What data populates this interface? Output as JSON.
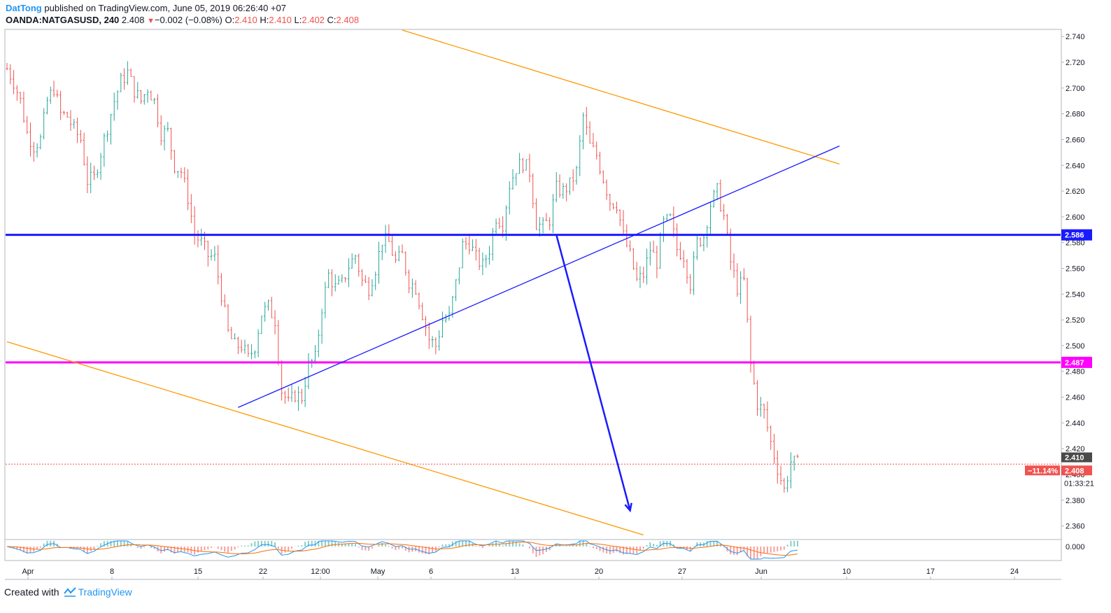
{
  "header": {
    "author": "DatTong",
    "published_text": "published on TradingView.com, June 05, 2019 06:26:40 +07",
    "symbol": "OANDA:NATGASUSD, 240",
    "last": "2.408",
    "change_arrow": "▼",
    "change": "−0.002 (−0.08%)",
    "open_label": "O:",
    "open": "2.410",
    "high_label": "H:",
    "high": "2.410",
    "low_label": "L:",
    "low": "2.402",
    "close_label": "C:",
    "close": "2.408"
  },
  "footer": {
    "created_with": "Created with",
    "brand": "TradingView"
  },
  "colors": {
    "up": "#26a69a",
    "down": "#ef5350",
    "resistance_blue": "#1a1aff",
    "support_magenta": "#ff00ff",
    "channel_orange": "#ff9800",
    "trend_blue": "#2962ff"
  },
  "chart_data": {
    "type": "candlestick",
    "symbol": "OANDA:NATGASUSD",
    "timeframe": "240",
    "ylim": [
      2.35,
      2.745
    ],
    "y_ticks": [
      "2.740",
      "2.720",
      "2.700",
      "2.680",
      "2.660",
      "2.640",
      "2.620",
      "2.600",
      "2.580",
      "2.560",
      "2.540",
      "2.520",
      "2.500",
      "2.480",
      "2.460",
      "2.440",
      "2.420",
      "2.400",
      "2.380",
      "2.360"
    ],
    "x_ticks": [
      "Apr",
      "8",
      "15",
      "22",
      "12:00",
      "May",
      "6",
      "13",
      "20",
      "27",
      "Jun",
      "10",
      "17",
      "24"
    ],
    "price_close_path": [
      [
        0,
        2.715
      ],
      [
        4,
        2.705
      ],
      [
        8,
        2.69
      ],
      [
        12,
        2.665
      ],
      [
        16,
        2.655
      ],
      [
        20,
        2.66
      ],
      [
        24,
        2.69
      ],
      [
        28,
        2.7
      ],
      [
        32,
        2.68
      ],
      [
        36,
        2.678
      ],
      [
        40,
        2.668
      ],
      [
        44,
        2.66
      ],
      [
        48,
        2.628
      ],
      [
        52,
        2.63
      ],
      [
        56,
        2.65
      ],
      [
        60,
        2.67
      ],
      [
        64,
        2.69
      ],
      [
        68,
        2.705
      ],
      [
        72,
        2.712
      ],
      [
        76,
        2.698
      ],
      [
        80,
        2.69
      ],
      [
        84,
        2.7
      ],
      [
        88,
        2.69
      ],
      [
        92,
        2.665
      ],
      [
        96,
        2.666
      ],
      [
        100,
        2.64
      ],
      [
        104,
        2.635
      ],
      [
        108,
        2.615
      ],
      [
        112,
        2.586
      ],
      [
        116,
        2.58
      ],
      [
        120,
        2.57
      ],
      [
        124,
        2.568
      ],
      [
        128,
        2.54
      ],
      [
        132,
        2.51
      ],
      [
        136,
        2.5
      ],
      [
        140,
        2.5
      ],
      [
        144,
        2.49
      ],
      [
        148,
        2.5
      ],
      [
        152,
        2.525
      ],
      [
        156,
        2.53
      ],
      [
        160,
        2.52
      ],
      [
        164,
        2.465
      ],
      [
        168,
        2.455
      ],
      [
        172,
        2.462
      ],
      [
        176,
        2.46
      ],
      [
        180,
        2.485
      ],
      [
        184,
        2.49
      ],
      [
        188,
        2.53
      ],
      [
        192,
        2.555
      ],
      [
        196,
        2.545
      ],
      [
        200,
        2.548
      ],
      [
        204,
        2.562
      ],
      [
        208,
        2.57
      ],
      [
        212,
        2.55
      ],
      [
        216,
        2.545
      ],
      [
        220,
        2.56
      ],
      [
        224,
        2.582
      ],
      [
        228,
        2.58
      ],
      [
        232,
        2.565
      ],
      [
        236,
        2.57
      ],
      [
        240,
        2.55
      ],
      [
        244,
        2.545
      ],
      [
        248,
        2.525
      ],
      [
        252,
        2.505
      ],
      [
        256,
        2.5
      ],
      [
        260,
        2.52
      ],
      [
        264,
        2.522
      ],
      [
        268,
        2.548
      ],
      [
        272,
        2.578
      ],
      [
        276,
        2.58
      ],
      [
        280,
        2.568
      ],
      [
        284,
        2.562
      ],
      [
        288,
        2.575
      ],
      [
        292,
        2.6
      ],
      [
        296,
        2.595
      ],
      [
        300,
        2.625
      ],
      [
        304,
        2.638
      ],
      [
        308,
        2.642
      ],
      [
        312,
        2.635
      ],
      [
        316,
        2.595
      ],
      [
        320,
        2.592
      ],
      [
        324,
        2.598
      ],
      [
        328,
        2.622
      ],
      [
        332,
        2.62
      ],
      [
        336,
        2.625
      ],
      [
        340,
        2.635
      ],
      [
        344,
        2.678
      ],
      [
        348,
        2.655
      ],
      [
        352,
        2.648
      ],
      [
        356,
        2.63
      ],
      [
        360,
        2.612
      ],
      [
        364,
        2.61
      ],
      [
        368,
        2.585
      ],
      [
        372,
        2.57
      ],
      [
        376,
        2.55
      ],
      [
        380,
        2.555
      ],
      [
        384,
        2.575
      ],
      [
        388,
        2.565
      ],
      [
        392,
        2.595
      ],
      [
        396,
        2.598
      ],
      [
        400,
        2.575
      ],
      [
        404,
        2.57
      ],
      [
        408,
        2.548
      ],
      [
        412,
        2.58
      ],
      [
        416,
        2.585
      ],
      [
        420,
        2.61
      ],
      [
        424,
        2.62
      ],
      [
        428,
        2.6
      ],
      [
        432,
        2.565
      ],
      [
        436,
        2.545
      ],
      [
        440,
        2.55
      ],
      [
        444,
        2.485
      ],
      [
        448,
        2.455
      ],
      [
        452,
        2.448
      ],
      [
        456,
        2.425
      ],
      [
        460,
        2.405
      ],
      [
        464,
        2.388
      ],
      [
        468,
        2.41
      ],
      [
        472,
        2.408
      ]
    ],
    "total_bars": 472,
    "horizontal_levels": [
      {
        "value": 2.586,
        "label": "2.586",
        "color_key": "resistance_blue"
      },
      {
        "value": 2.487,
        "label": "2.487",
        "color_key": "support_magenta"
      }
    ],
    "last_price_label": "2.410",
    "current_price_label": "2.408",
    "percent_badge": "−11.14%",
    "countdown": "01:33:21",
    "trendlines": [
      {
        "name": "upper-channel",
        "color_key": "channel_orange",
        "from": {
          "bar": 236,
          "price": 2.745
        },
        "to": {
          "bar": 497,
          "price": 2.641
        }
      },
      {
        "name": "lower-channel",
        "color_key": "channel_orange",
        "from": {
          "bar": 0,
          "price": 2.503
        },
        "to": {
          "bar": 380,
          "price": 2.353
        }
      },
      {
        "name": "rising-trend",
        "color_key": "resistance_blue",
        "from": {
          "bar": 138,
          "price": 2.452
        },
        "to": {
          "bar": 497,
          "price": 2.655
        }
      },
      {
        "name": "drop-arrow",
        "color_key": "resistance_blue",
        "from": {
          "bar": 328,
          "price": 2.586
        },
        "to": {
          "bar": 372,
          "price": 2.372
        }
      }
    ],
    "macd_scale_label": "0.000"
  }
}
